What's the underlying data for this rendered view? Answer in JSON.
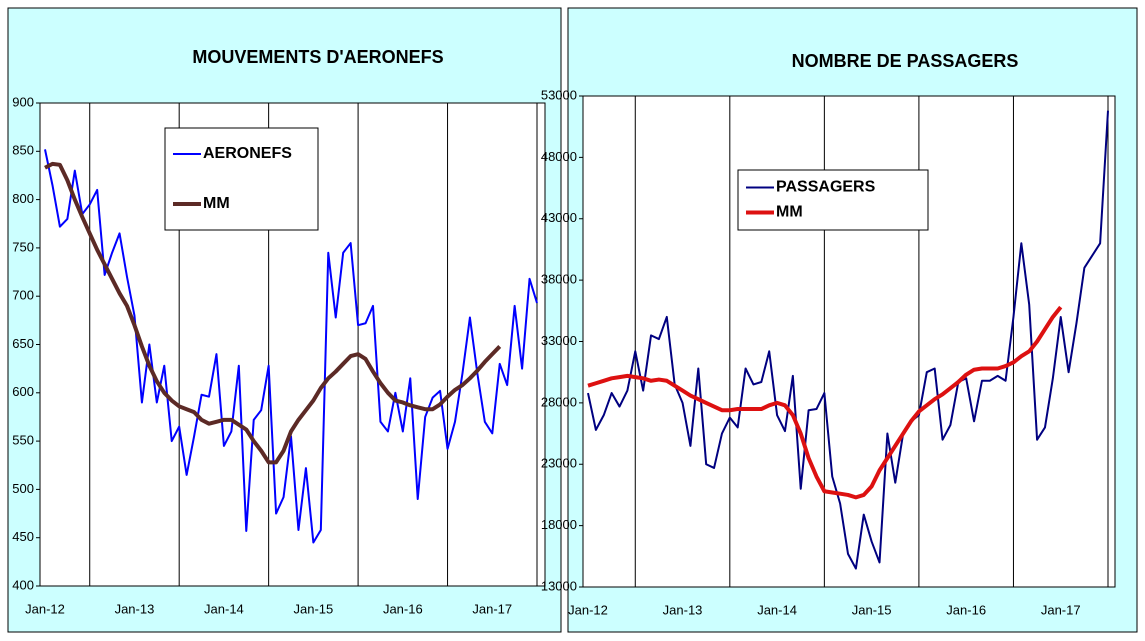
{
  "chart_data": [
    {
      "type": "line",
      "title": "MOUVEMENTS D'AERONEFS",
      "categories": [
        "Jan-12",
        null,
        null,
        null,
        null,
        null,
        null,
        null,
        null,
        null,
        null,
        null,
        "Jan-13",
        null,
        null,
        null,
        null,
        null,
        null,
        null,
        null,
        null,
        null,
        null,
        "Jan-14",
        null,
        null,
        null,
        null,
        null,
        null,
        null,
        null,
        null,
        null,
        null,
        "Jan-15",
        null,
        null,
        null,
        null,
        null,
        null,
        null,
        null,
        null,
        null,
        null,
        "Jan-16",
        null,
        null,
        null,
        null,
        null,
        null,
        null,
        null,
        null,
        null,
        null,
        "Jan-17",
        null,
        null,
        null,
        null,
        null,
        null
      ],
      "series": [
        {
          "name": "AERONEFS",
          "color": "#0000ff",
          "width": 2,
          "values": [
            852,
            815,
            772,
            780,
            830,
            785,
            795,
            810,
            722,
            745,
            765,
            720,
            680,
            590,
            650,
            590,
            628,
            550,
            565,
            515,
            555,
            598,
            596,
            640,
            545,
            560,
            628,
            457,
            572,
            582,
            628,
            475,
            492,
            555,
            458,
            522,
            445,
            458,
            745,
            678,
            745,
            755,
            670,
            672,
            690,
            570,
            560,
            600,
            560,
            615,
            490,
            575,
            595,
            602,
            542,
            570,
            620,
            678,
            620,
            570,
            558,
            630,
            608,
            690,
            625,
            718,
            693
          ]
        },
        {
          "name": "MM",
          "color": "#5c2a26",
          "width": 4,
          "values": [
            833,
            837,
            836,
            820,
            800,
            782,
            765,
            748,
            733,
            718,
            703,
            690,
            670,
            648,
            628,
            612,
            600,
            592,
            586,
            583,
            580,
            572,
            568,
            570,
            572,
            572,
            567,
            562,
            550,
            540,
            528,
            528,
            540,
            560,
            572,
            582,
            592,
            605,
            615,
            622,
            630,
            638,
            640,
            635,
            622,
            610,
            600,
            592,
            590,
            587,
            585,
            583,
            583,
            588,
            596,
            603,
            608,
            615,
            623,
            632,
            640,
            648,
            null,
            null,
            null,
            null,
            null
          ]
        }
      ],
      "ylim": [
        400,
        900
      ],
      "yticks": [
        400,
        450,
        500,
        550,
        600,
        650,
        700,
        750,
        800,
        850,
        900
      ],
      "grid": false,
      "legend": "upper left"
    },
    {
      "type": "line",
      "title": "NOMBRE DE PASSAGERS",
      "categories": [
        "Jan-12",
        null,
        null,
        null,
        null,
        null,
        null,
        null,
        null,
        null,
        null,
        null,
        "Jan-13",
        null,
        null,
        null,
        null,
        null,
        null,
        null,
        null,
        null,
        null,
        null,
        "Jan-14",
        null,
        null,
        null,
        null,
        null,
        null,
        null,
        null,
        null,
        null,
        null,
        "Jan-15",
        null,
        null,
        null,
        null,
        null,
        null,
        null,
        null,
        null,
        null,
        null,
        "Jan-16",
        null,
        null,
        null,
        null,
        null,
        null,
        null,
        null,
        null,
        null,
        null,
        "Jan-17",
        null,
        null,
        null,
        null,
        null,
        null
      ],
      "series": [
        {
          "name": "PASSAGERS",
          "color": "#000080",
          "width": 2,
          "values": [
            28800,
            25800,
            27000,
            28800,
            27700,
            29000,
            32200,
            29000,
            33500,
            33200,
            35000,
            29500,
            28000,
            24500,
            30800,
            23000,
            22700,
            25500,
            26800,
            26000,
            30800,
            29500,
            29700,
            32200,
            27000,
            25700,
            30200,
            21000,
            27400,
            27500,
            28800,
            22000,
            19800,
            15700,
            14500,
            18900,
            16700,
            15000,
            25500,
            21500,
            25500,
            26500,
            27000,
            30500,
            30800,
            25000,
            26200,
            29700,
            30000,
            26500,
            29800,
            29800,
            30200,
            29800,
            35000,
            41000,
            36000,
            25000,
            26000,
            30000,
            35000,
            30500,
            34500,
            39000,
            40000,
            41000,
            51800
          ]
        },
        {
          "name": "MM",
          "color": "#dd1111",
          "width": 4,
          "values": [
            29400,
            29600,
            29800,
            30000,
            30100,
            30200,
            30100,
            30000,
            29800,
            29900,
            29800,
            29400,
            29000,
            28600,
            28300,
            28000,
            27700,
            27400,
            27400,
            27500,
            27500,
            27500,
            27500,
            27800,
            28000,
            27800,
            27000,
            25500,
            23500,
            22000,
            20800,
            20700,
            20600,
            20500,
            20300,
            20500,
            21200,
            22500,
            23500,
            24500,
            25500,
            26500,
            27300,
            27800,
            28300,
            28700,
            29200,
            29700,
            30300,
            30700,
            30800,
            30800,
            30800,
            31000,
            31300,
            31800,
            32200,
            33000,
            34000,
            35000,
            35800,
            null,
            null,
            null,
            null,
            null,
            null
          ]
        }
      ],
      "ylim": [
        13000,
        53000
      ],
      "yticks": [
        13000,
        18000,
        23000,
        28000,
        33000,
        38000,
        43000,
        48000,
        53000
      ],
      "grid": false,
      "legend": "upper left"
    }
  ]
}
